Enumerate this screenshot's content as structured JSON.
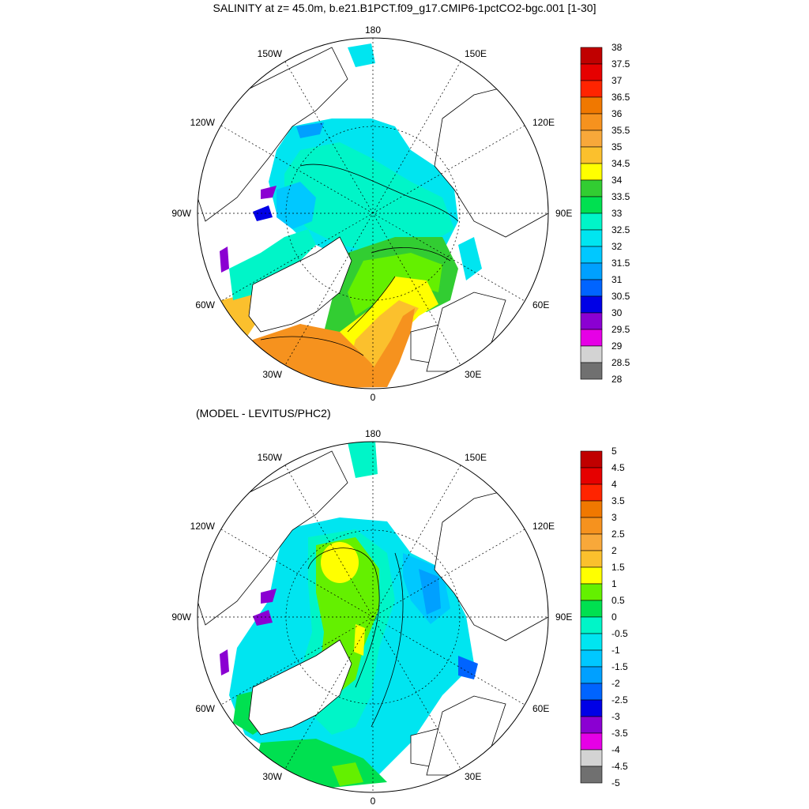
{
  "title": "SALINITY at z=  45.0m, b.e21.B1PCT.f09_g17.CMIP6-1pctCO2-bgc.001 [1-30]",
  "subtitle": "(MODEL - LEVITUS/PHC2)",
  "longitude_labels": {
    "top": "180",
    "bottom": "0",
    "left": "90W",
    "right": "90E",
    "upper_left": "150W",
    "upper_right": "150E",
    "mid_upper_left": "120W",
    "mid_upper_right": "120E",
    "lower_left": "60W",
    "lower_right": "60E",
    "bottom_left": "30W",
    "bottom_right": "30E"
  },
  "colorbar_top": {
    "labels": [
      "38",
      "37.5",
      "37",
      "36.5",
      "36",
      "35.5",
      "35",
      "34.5",
      "34",
      "33.5",
      "33",
      "32.5",
      "32",
      "31.5",
      "31",
      "30.5",
      "30",
      "29.5",
      "29",
      "28.5",
      "28"
    ],
    "colors": [
      "#c00000",
      "#e60000",
      "#ff2400",
      "#f07800",
      "#f6921e",
      "#f8a83a",
      "#fbc02d",
      "#ffff00",
      "#32cd32",
      "#00e050",
      "#00f5c8",
      "#00e5f0",
      "#00c8ff",
      "#00a0ff",
      "#0064ff",
      "#0000e6",
      "#8b00d2",
      "#e600e6",
      "#d3d3d3",
      "#707070"
    ]
  },
  "colorbar_bottom": {
    "labels": [
      "5",
      "4.5",
      "4",
      "3.5",
      "3",
      "2.5",
      "2",
      "1.5",
      "1",
      "0.5",
      "0",
      "-0.5",
      "-1",
      "-1.5",
      "-2",
      "-2.5",
      "-3",
      "-3.5",
      "-4",
      "-4.5",
      "-5"
    ],
    "colors": [
      "#c00000",
      "#e60000",
      "#ff2400",
      "#f07800",
      "#f6921e",
      "#f8a83a",
      "#fbc02d",
      "#ffff00",
      "#64f000",
      "#00e050",
      "#00f5c8",
      "#00e5f0",
      "#00c8ff",
      "#00a0ff",
      "#0064ff",
      "#0000e6",
      "#8b00d2",
      "#e600e6",
      "#d3d3d3",
      "#707070"
    ]
  },
  "colors": {
    "ocean_cyan": "#00e5f0",
    "ocean_aqua": "#00f5c8",
    "ocean_green": "#00e050",
    "ocean_lime": "#64f000",
    "ocean_yellow": "#ffff00",
    "ocean_orange": "#f6921e",
    "land": "#ffffff"
  }
}
